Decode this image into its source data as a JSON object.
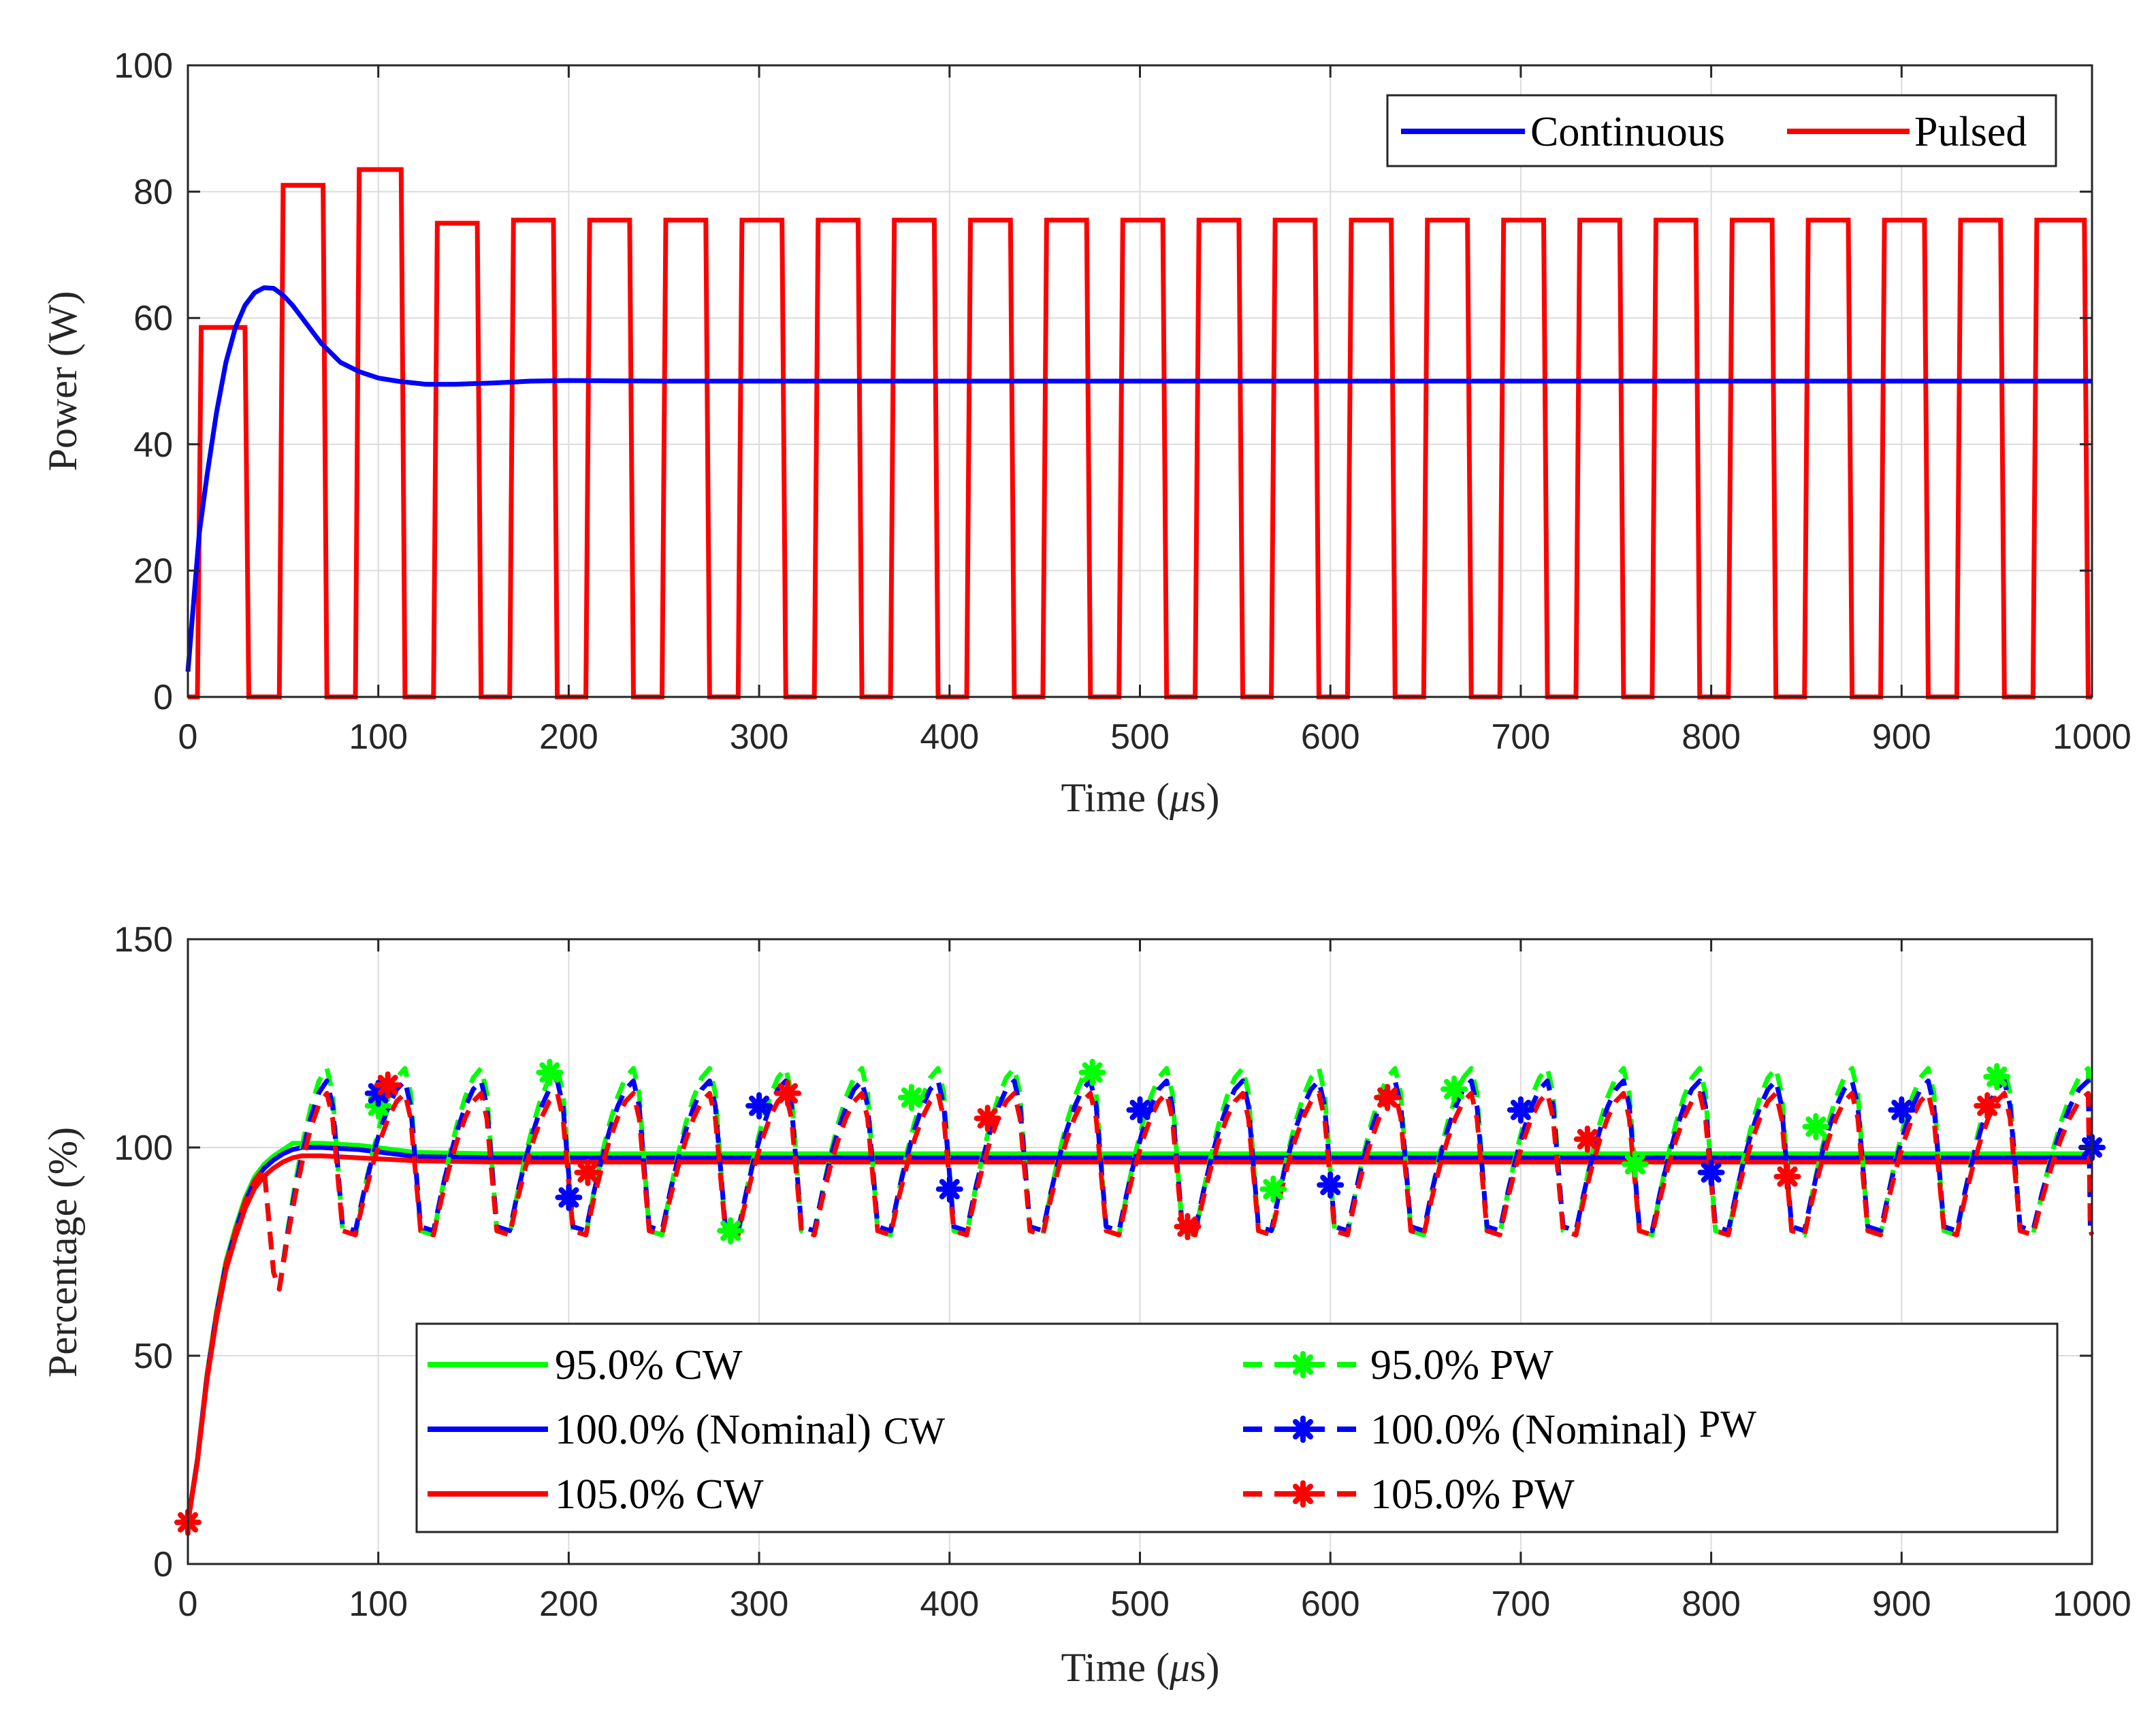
{
  "chart_data": [
    {
      "type": "line",
      "title": "",
      "xlabel_main": "Time (",
      "xlabel_mu": "μ",
      "xlabel_tail": "s)",
      "ylabel": "Power (W)",
      "xlim": [
        0,
        1000
      ],
      "ylim": [
        0,
        100
      ],
      "x_ticks": [
        0,
        100,
        200,
        300,
        400,
        500,
        600,
        700,
        800,
        900,
        1000
      ],
      "y_ticks": [
        0,
        20,
        40,
        60,
        80,
        100
      ],
      "grid": true,
      "legend_position": "top-right",
      "series": [
        {
          "name": "Continuous",
          "color": "#0000ff",
          "style": "solid",
          "points": [
            [
              0,
              4
            ],
            [
              3,
              15
            ],
            [
              6,
              26
            ],
            [
              10,
              35
            ],
            [
              15,
              45
            ],
            [
              20,
              53
            ],
            [
              25,
              58.5
            ],
            [
              30,
              62
            ],
            [
              35,
              64
            ],
            [
              40,
              64.8
            ],
            [
              45,
              64.7
            ],
            [
              50,
              63.6
            ],
            [
              55,
              62
            ],
            [
              60,
              60
            ],
            [
              65,
              58
            ],
            [
              70,
              56
            ],
            [
              75,
              54.5
            ],
            [
              80,
              53
            ],
            [
              90,
              51.5
            ],
            [
              100,
              50.5
            ],
            [
              110,
              50
            ],
            [
              125,
              49.5
            ],
            [
              140,
              49.5
            ],
            [
              160,
              49.7
            ],
            [
              180,
              50
            ],
            [
              200,
              50.1
            ],
            [
              250,
              50
            ],
            [
              1000,
              50
            ]
          ]
        },
        {
          "name": "Pulsed",
          "color": "#ff0000",
          "style": "solid",
          "period": 40,
          "pulses": [
            {
              "rise": 5,
              "fall": 32,
              "level": 58.5
            },
            {
              "rise": 48,
              "fall": 73,
              "level": 81
            },
            {
              "rise": 88,
              "fall": 114,
              "level": 83.5
            },
            {
              "rise": 129,
              "fall": 154,
              "level": 75
            },
            {
              "rise": 169,
              "fall": 194,
              "level": 75.5
            },
            {
              "rise": 209,
              "fall": 234,
              "level": 75.5
            },
            {
              "rise": 249,
              "fall": 274,
              "level": 75.5
            },
            {
              "rise": 289,
              "fall": 314,
              "level": 75.5
            },
            {
              "rise": 329,
              "fall": 354,
              "level": 75.5
            },
            {
              "rise": 369,
              "fall": 394,
              "level": 75.5
            },
            {
              "rise": 409,
              "fall": 434,
              "level": 75.5
            },
            {
              "rise": 449,
              "fall": 474,
              "level": 75.5
            },
            {
              "rise": 489,
              "fall": 514,
              "level": 75.5
            },
            {
              "rise": 529,
              "fall": 554,
              "level": 75.5
            },
            {
              "rise": 569,
              "fall": 594,
              "level": 75.5
            },
            {
              "rise": 609,
              "fall": 634,
              "level": 75.5
            },
            {
              "rise": 649,
              "fall": 674,
              "level": 75.5
            },
            {
              "rise": 689,
              "fall": 714,
              "level": 75.5
            },
            {
              "rise": 729,
              "fall": 754,
              "level": 75.5
            },
            {
              "rise": 769,
              "fall": 794,
              "level": 75.5
            },
            {
              "rise": 809,
              "fall": 834,
              "level": 75.5
            },
            {
              "rise": 849,
              "fall": 874,
              "level": 75.5
            },
            {
              "rise": 889,
              "fall": 914,
              "level": 75.5
            },
            {
              "rise": 929,
              "fall": 954,
              "level": 75.5
            },
            {
              "rise": 969,
              "fall": 998,
              "level": 75.5
            }
          ]
        }
      ]
    },
    {
      "type": "line",
      "title": "",
      "xlabel_main": "Time (",
      "xlabel_mu": "μ",
      "xlabel_tail": "s)",
      "ylabel": "Percentage (%)",
      "xlim": [
        0,
        1000
      ],
      "ylim": [
        0,
        150
      ],
      "x_ticks": [
        0,
        100,
        200,
        300,
        400,
        500,
        600,
        700,
        800,
        900,
        1000
      ],
      "y_ticks": [
        0,
        50,
        100,
        150
      ],
      "grid": true,
      "legend_position": "bottom-center",
      "cw_rise": [
        [
          0,
          10
        ],
        [
          5,
          25
        ],
        [
          10,
          45
        ],
        [
          15,
          60
        ],
        [
          20,
          72
        ],
        [
          25,
          80
        ],
        [
          30,
          87
        ],
        [
          35,
          92
        ],
        [
          40,
          95
        ],
        [
          45,
          97
        ],
        [
          50,
          98.5
        ],
        [
          55,
          99.5
        ],
        [
          60,
          100
        ]
      ],
      "series": [
        {
          "name": "95.0% CW",
          "color": "#00ff00",
          "style": "solid",
          "kind": "cw",
          "peak": 101,
          "steady": 98.5,
          "pulse_scale": 1.02
        },
        {
          "name": "100.0% (Nominal) CW",
          "color": "#0000ff",
          "style": "solid",
          "kind": "cw",
          "peak": 100,
          "steady": 97.5,
          "pulse_scale": 1.0
        },
        {
          "name": "105.0% CW",
          "color": "#ff0000",
          "style": "solid",
          "kind": "cw",
          "peak": 98,
          "steady": 96.5,
          "pulse_scale": 0.98
        },
        {
          "name": "95.0% PW",
          "color": "#00ff00",
          "style": "dashed",
          "kind": "pw",
          "peak": 119,
          "trough": 79,
          "pulse_scale": 1.02,
          "markers": [
            [
              100,
              110
            ],
            [
              190,
              118
            ],
            [
              285,
              80
            ],
            [
              380,
              112
            ],
            [
              475,
              118
            ],
            [
              570,
              90
            ],
            [
              665,
              114
            ],
            [
              760,
              96
            ],
            [
              855,
              105
            ],
            [
              950,
              117
            ]
          ]
        },
        {
          "name": "100.0% (Nominal) PW",
          "color": "#0000ff",
          "style": "dashed",
          "kind": "pw",
          "peak": 116,
          "trough": 80,
          "pulse_scale": 1.0,
          "markers": [
            [
              100,
              113
            ],
            [
              200,
              88
            ],
            [
              300,
              110
            ],
            [
              400,
              90
            ],
            [
              500,
              109
            ],
            [
              600,
              91
            ],
            [
              700,
              109
            ],
            [
              800,
              94
            ],
            [
              900,
              109
            ],
            [
              1000,
              100
            ]
          ]
        },
        {
          "name": "105.0% PW",
          "color": "#ff0000",
          "style": "dashed",
          "kind": "pw",
          "peak": 113,
          "trough": 79,
          "pulse_scale": 0.98,
          "markers": [
            [
              0,
              10
            ],
            [
              105,
              115
            ],
            [
              210,
              94
            ],
            [
              315,
              113
            ],
            [
              420,
              107
            ],
            [
              525,
              81
            ],
            [
              630,
              112
            ],
            [
              735,
              102
            ],
            [
              840,
              93
            ],
            [
              945,
              110
            ]
          ]
        }
      ]
    }
  ],
  "legend_top": {
    "continuous_label": "Continuous",
    "pulsed_label": "Pulsed"
  },
  "legend_bottom": {
    "cw95": "95.0% CW",
    "cw100_a": "100.0% (Nominal)",
    "cw100_b": "CW",
    "cw105": "105.0% CW",
    "pw95": "95.0% PW",
    "pw100_a": "100.0% (Nominal)",
    "pw100_b": "PW",
    "pw105": "105.0% PW"
  },
  "colors": {
    "green": "#00ff00",
    "blue": "#0000ff",
    "red": "#ff0000",
    "grid": "#dcdcdc",
    "axis": "#262626"
  }
}
